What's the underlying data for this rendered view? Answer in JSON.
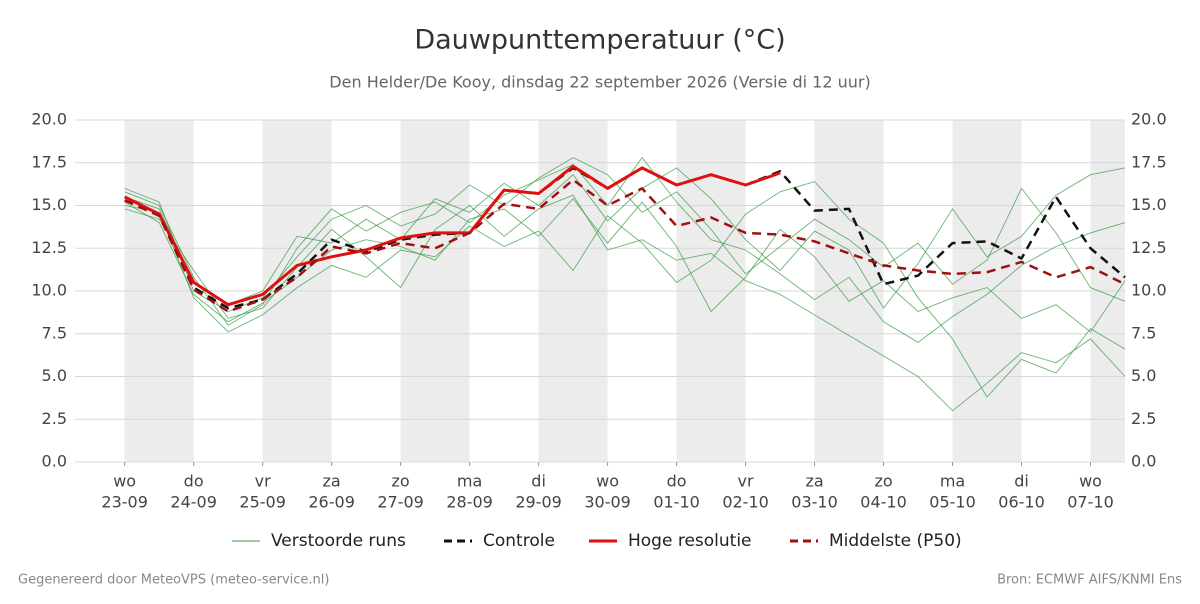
{
  "chart_data": {
    "type": "line",
    "title": "Dauwpunttemperatuur (°C)",
    "subtitle": "Den Helder/De Kooy, dinsdag 22 september 2026 (Versie di 12 uur)",
    "footer_left": "Gegenereerd door MeteoVPS (meteo-service.nl)",
    "footer_right": "Bron: ECMWF AIFS/KNMI Ens",
    "xlim": [
      -0.72,
      14.5
    ],
    "ylim": [
      0,
      20
    ],
    "grid": true,
    "shade_alternate_days": true,
    "xticks": [
      {
        "value": 0,
        "label": "wo",
        "date": "23-09"
      },
      {
        "value": 1,
        "label": "do",
        "date": "24-09"
      },
      {
        "value": 2,
        "label": "vr",
        "date": "25-09"
      },
      {
        "value": 3,
        "label": "za",
        "date": "26-09"
      },
      {
        "value": 4,
        "label": "zo",
        "date": "27-09"
      },
      {
        "value": 5,
        "label": "ma",
        "date": "28-09"
      },
      {
        "value": 6,
        "label": "di",
        "date": "29-09"
      },
      {
        "value": 7,
        "label": "wo",
        "date": "30-09"
      },
      {
        "value": 8,
        "label": "do",
        "date": "01-10"
      },
      {
        "value": 9,
        "label": "vr",
        "date": "02-10"
      },
      {
        "value": 10,
        "label": "za",
        "date": "03-10"
      },
      {
        "value": 11,
        "label": "zo",
        "date": "04-10"
      },
      {
        "value": 12,
        "label": "ma",
        "date": "05-10"
      },
      {
        "value": 13,
        "label": "di",
        "date": "06-10"
      },
      {
        "value": 14,
        "label": "wo",
        "date": "07-10"
      }
    ],
    "yticks": [
      {
        "value": 0,
        "label": "0.0"
      },
      {
        "value": 2.5,
        "label": "2.5"
      },
      {
        "value": 5,
        "label": "5.0"
      },
      {
        "value": 7.5,
        "label": "7.5"
      },
      {
        "value": 10,
        "label": "10.0"
      },
      {
        "value": 12.5,
        "label": "12.5"
      },
      {
        "value": 15,
        "label": "15.0"
      },
      {
        "value": 17.5,
        "label": "17.5"
      },
      {
        "value": 20,
        "label": "20.0"
      }
    ],
    "x": [
      0,
      0.5,
      1,
      1.5,
      2,
      2.5,
      3,
      3.5,
      4,
      4.5,
      5,
      5.5,
      6,
      6.5,
      7,
      7.5,
      8,
      8.5,
      9,
      9.5,
      10,
      10.5,
      11,
      11.5,
      12,
      12.5,
      13,
      13.5,
      14,
      14.5
    ],
    "ensemble": {
      "name": "Verstoorde runs",
      "color": "#3a9a45",
      "members": [
        [
          15.8,
          15.0,
          10.8,
          8.0,
          9.2,
          12.5,
          14.8,
          13.5,
          14.6,
          15.2,
          14.0,
          15.6,
          16.5,
          17.4,
          15.0,
          17.8,
          15.2,
          13.0,
          12.4,
          11.0,
          9.5,
          10.8,
          8.2,
          7.0,
          8.5,
          9.8,
          11.5,
          12.6,
          13.4,
          14.0
        ],
        [
          15.0,
          14.6,
          9.6,
          7.6,
          8.6,
          10.2,
          11.5,
          10.8,
          12.4,
          12.0,
          13.8,
          12.6,
          13.5,
          11.2,
          14.4,
          12.8,
          10.5,
          11.8,
          14.5,
          15.8,
          16.4,
          14.2,
          12.8,
          9.6,
          7.2,
          3.8,
          6.0,
          5.2,
          7.8,
          6.6
        ],
        [
          15.5,
          14.8,
          10.5,
          9.2,
          10.0,
          13.2,
          12.8,
          14.2,
          13.0,
          15.4,
          14.6,
          16.3,
          15.0,
          16.8,
          14.1,
          16.0,
          17.2,
          15.4,
          13.0,
          11.2,
          13.5,
          12.4,
          9.0,
          11.6,
          14.8,
          12.0,
          13.2,
          15.6,
          16.8,
          17.2
        ],
        [
          14.8,
          14.2,
          11.2,
          8.4,
          9.0,
          11.4,
          13.6,
          12.0,
          10.2,
          13.6,
          15.0,
          13.2,
          14.8,
          15.6,
          12.4,
          13.0,
          11.8,
          12.2,
          10.6,
          9.8,
          8.6,
          7.4,
          6.2,
          5.0,
          3.0,
          4.6,
          6.4,
          5.8,
          7.2,
          5.0
        ],
        [
          16.0,
          15.2,
          10.0,
          8.8,
          9.6,
          12.0,
          14.2,
          15.0,
          13.8,
          14.5,
          16.2,
          15.0,
          16.6,
          17.8,
          16.8,
          14.6,
          15.8,
          13.6,
          11.0,
          12.6,
          14.2,
          13.0,
          11.4,
          12.8,
          10.4,
          11.8,
          16.0,
          13.4,
          10.2,
          9.4
        ],
        [
          15.2,
          14.0,
          9.8,
          8.2,
          9.3,
          10.8,
          12.4,
          13.0,
          12.6,
          11.8,
          14.2,
          14.8,
          13.2,
          15.4,
          12.8,
          15.2,
          12.6,
          8.8,
          10.8,
          13.6,
          12.0,
          9.4,
          10.6,
          8.8,
          9.6,
          10.2,
          8.4,
          9.2,
          7.6,
          10.6
        ]
      ]
    },
    "series": [
      {
        "name": "Controle",
        "color": "#111111",
        "linestyle": "dashed",
        "values": [
          15.3,
          14.5,
          10.2,
          9.0,
          9.5,
          11.0,
          13.0,
          12.3,
          13.0,
          13.3,
          13.4,
          15.9,
          15.7,
          17.2,
          16.0,
          17.2,
          16.2,
          16.8,
          16.2,
          17.0,
          14.7,
          14.8,
          10.4,
          10.9,
          12.8,
          12.9,
          11.9,
          15.5,
          12.5,
          10.8
        ]
      },
      {
        "name": "Hoge resolutie",
        "color": "#e01010",
        "linestyle": "solid",
        "values": [
          15.5,
          14.5,
          10.5,
          9.2,
          9.8,
          11.5,
          12.0,
          12.4,
          13.1,
          13.4,
          13.4,
          15.9,
          15.7,
          17.3,
          16.0,
          17.2,
          16.2,
          16.8,
          16.2,
          16.9,
          null,
          null,
          null,
          null,
          null,
          null,
          null,
          null,
          null,
          null
        ]
      },
      {
        "name": "Middelste (P50)",
        "color": "#a01010",
        "linestyle": "dashed",
        "values": [
          15.3,
          14.4,
          10.1,
          8.8,
          9.5,
          10.8,
          12.6,
          12.2,
          12.8,
          12.5,
          13.4,
          15.1,
          14.8,
          16.5,
          15.0,
          16.0,
          13.8,
          14.3,
          13.4,
          13.3,
          12.9,
          12.2,
          11.5,
          11.2,
          11.0,
          11.1,
          11.7,
          10.8,
          11.4,
          10.4
        ]
      }
    ]
  }
}
